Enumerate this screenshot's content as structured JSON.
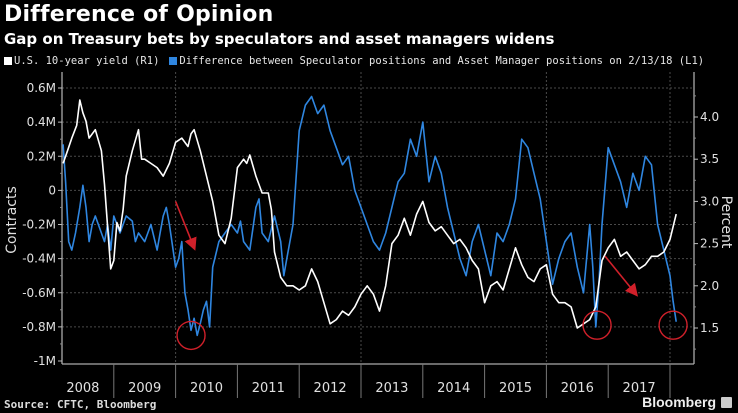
{
  "header": {
    "title": "Difference of Opinion",
    "subtitle": "Gap on Treasury bets by speculators and asset managers widens"
  },
  "footer": {
    "source": "Source: CFTC, Bloomberg",
    "brand": "Bloomberg"
  },
  "colors": {
    "background": "#000000",
    "yield_line": "#ffffff",
    "difference_line": "#2f86e0",
    "annotation": "#d0202a",
    "grid": "#555555"
  },
  "chart_data": {
    "type": "line",
    "title": "Difference of Opinion",
    "subtitle": "Gap on Treasury bets by speculators and asset managers widens",
    "legend_placement": "top-left",
    "legend": [
      "U.S. 10-year yield (R1)",
      "Difference between Speculator positions and Asset Manager positions on 2/13/18 (L1)"
    ],
    "xlabel": "",
    "x_tick_labels": [
      "2008",
      "2009",
      "2010",
      "2011",
      "2012",
      "2013",
      "2014",
      "2015",
      "2016",
      "2017"
    ],
    "xlim": [
      2008.0,
      2018.3
    ],
    "left_axis": {
      "label": "Contracts",
      "ticks": [
        0.6,
        0.4,
        0.2,
        0,
        -0.2,
        -0.4,
        -0.6,
        -0.8,
        -1.0
      ],
      "tick_labels": [
        "0.6M",
        "0.4M",
        "0.2M",
        "0",
        "-0.2M",
        "-0.4M",
        "-0.6M",
        "-0.8M",
        "-1M"
      ],
      "ylim": [
        -1.0,
        0.68
      ],
      "units": "millions of contracts"
    },
    "right_axis": {
      "label": "Percent",
      "ticks": [
        4.0,
        3.5,
        3.0,
        2.5,
        2.0,
        1.5
      ],
      "tick_labels": [
        "4.0",
        "3.5",
        "3.0",
        "2.5",
        "2.0",
        "1.5"
      ],
      "ylim": [
        1.25,
        4.45
      ]
    },
    "grid": true,
    "series": [
      {
        "name": "U.S. 10-year yield (R1)",
        "axis": "right",
        "color": "#ffffff",
        "x": [
          2008.18,
          2008.25,
          2008.32,
          2008.4,
          2008.45,
          2008.5,
          2008.55,
          2008.6,
          2008.7,
          2008.8,
          2008.85,
          2008.9,
          2008.95,
          2009.0,
          2009.05,
          2009.1,
          2009.15,
          2009.2,
          2009.3,
          2009.4,
          2009.45,
          2009.5,
          2009.6,
          2009.7,
          2009.8,
          2009.9,
          2010.0,
          2010.1,
          2010.2,
          2010.25,
          2010.3,
          2010.4,
          2010.5,
          2010.6,
          2010.7,
          2010.8,
          2010.9,
          2011.0,
          2011.1,
          2011.15,
          2011.2,
          2011.3,
          2011.4,
          2011.5,
          2011.55,
          2011.6,
          2011.7,
          2011.8,
          2011.9,
          2012.0,
          2012.1,
          2012.2,
          2012.3,
          2012.4,
          2012.5,
          2012.6,
          2012.7,
          2012.8,
          2012.9,
          2013.0,
          2013.1,
          2013.2,
          2013.3,
          2013.4,
          2013.5,
          2013.6,
          2013.7,
          2013.8,
          2013.9,
          2014.0,
          2014.1,
          2014.2,
          2014.3,
          2014.4,
          2014.5,
          2014.6,
          2014.7,
          2014.8,
          2014.9,
          2015.0,
          2015.1,
          2015.2,
          2015.3,
          2015.4,
          2015.5,
          2015.6,
          2015.7,
          2015.8,
          2015.9,
          2016.0,
          2016.1,
          2016.2,
          2016.3,
          2016.4,
          2016.5,
          2016.6,
          2016.7,
          2016.8,
          2016.9,
          2017.0,
          2017.1,
          2017.2,
          2017.3,
          2017.4,
          2017.5,
          2017.6,
          2017.7,
          2017.8,
          2017.9,
          2018.0,
          2018.1
        ],
        "values": [
          3.45,
          3.6,
          3.75,
          3.9,
          4.2,
          4.05,
          3.95,
          3.75,
          3.85,
          3.6,
          3.2,
          2.7,
          2.2,
          2.3,
          2.75,
          2.65,
          2.9,
          3.3,
          3.6,
          3.85,
          3.5,
          3.5,
          3.45,
          3.4,
          3.3,
          3.45,
          3.7,
          3.75,
          3.65,
          3.8,
          3.85,
          3.6,
          3.3,
          3.0,
          2.6,
          2.5,
          2.8,
          3.4,
          3.5,
          3.45,
          3.55,
          3.3,
          3.1,
          3.1,
          2.9,
          2.4,
          2.1,
          2.0,
          2.0,
          1.95,
          2.0,
          2.2,
          2.05,
          1.8,
          1.55,
          1.6,
          1.7,
          1.65,
          1.75,
          1.9,
          2.0,
          1.9,
          1.7,
          2.0,
          2.5,
          2.6,
          2.8,
          2.6,
          2.85,
          3.0,
          2.75,
          2.65,
          2.7,
          2.6,
          2.5,
          2.55,
          2.45,
          2.3,
          2.2,
          1.8,
          2.0,
          2.05,
          1.95,
          2.2,
          2.45,
          2.25,
          2.1,
          2.05,
          2.2,
          2.25,
          1.9,
          1.8,
          1.8,
          1.75,
          1.5,
          1.55,
          1.6,
          1.75,
          2.3,
          2.45,
          2.55,
          2.35,
          2.4,
          2.3,
          2.2,
          2.25,
          2.35,
          2.35,
          2.4,
          2.55,
          2.85
        ]
      },
      {
        "name": "Difference between Speculator positions and Asset Manager positions on 2/13/18 (L1)",
        "axis": "left",
        "color": "#2f86e0",
        "x": [
          2008.18,
          2008.22,
          2008.27,
          2008.32,
          2008.38,
          2008.45,
          2008.5,
          2008.55,
          2008.6,
          2008.65,
          2008.7,
          2008.8,
          2008.85,
          2008.9,
          2008.95,
          2009.0,
          2009.05,
          2009.1,
          2009.2,
          2009.3,
          2009.35,
          2009.4,
          2009.5,
          2009.6,
          2009.7,
          2009.75,
          2009.8,
          2009.85,
          2009.9,
          2010.0,
          2010.05,
          2010.1,
          2010.15,
          2010.2,
          2010.25,
          2010.3,
          2010.35,
          2010.4,
          2010.45,
          2010.5,
          2010.55,
          2010.6,
          2010.7,
          2010.8,
          2010.9,
          2011.0,
          2011.05,
          2011.1,
          2011.2,
          2011.3,
          2011.35,
          2011.4,
          2011.5,
          2011.6,
          2011.7,
          2011.75,
          2011.8,
          2011.9,
          2012.0,
          2012.1,
          2012.2,
          2012.3,
          2012.4,
          2012.5,
          2012.6,
          2012.7,
          2012.8,
          2012.9,
          2013.0,
          2013.1,
          2013.2,
          2013.3,
          2013.4,
          2013.5,
          2013.6,
          2013.7,
          2013.8,
          2013.9,
          2014.0,
          2014.1,
          2014.2,
          2014.3,
          2014.4,
          2014.5,
          2014.6,
          2014.7,
          2014.8,
          2014.9,
          2015.0,
          2015.1,
          2015.2,
          2015.3,
          2015.4,
          2015.5,
          2015.6,
          2015.7,
          2015.8,
          2015.9,
          2016.0,
          2016.1,
          2016.2,
          2016.3,
          2016.4,
          2016.5,
          2016.6,
          2016.7,
          2016.75,
          2016.8,
          2016.85,
          2016.9,
          2017.0,
          2017.1,
          2017.2,
          2017.3,
          2017.4,
          2017.5,
          2017.6,
          2017.7,
          2017.8,
          2017.9,
          2018.0,
          2018.05,
          2018.1
        ],
        "values": [
          0.27,
          0.05,
          -0.3,
          -0.35,
          -0.25,
          -0.1,
          0.03,
          -0.1,
          -0.3,
          -0.2,
          -0.15,
          -0.25,
          -0.3,
          -0.2,
          -0.35,
          -0.15,
          -0.2,
          -0.25,
          -0.15,
          -0.18,
          -0.3,
          -0.25,
          -0.3,
          -0.2,
          -0.35,
          -0.25,
          -0.15,
          -0.1,
          -0.2,
          -0.45,
          -0.4,
          -0.3,
          -0.6,
          -0.7,
          -0.82,
          -0.75,
          -0.85,
          -0.78,
          -0.7,
          -0.65,
          -0.8,
          -0.45,
          -0.3,
          -0.25,
          -0.2,
          -0.25,
          -0.18,
          -0.3,
          -0.35,
          -0.1,
          -0.05,
          -0.25,
          -0.3,
          -0.15,
          -0.3,
          -0.5,
          -0.4,
          -0.2,
          0.35,
          0.5,
          0.55,
          0.45,
          0.5,
          0.35,
          0.25,
          0.15,
          0.2,
          0.0,
          -0.1,
          -0.2,
          -0.3,
          -0.35,
          -0.25,
          -0.1,
          0.05,
          0.1,
          0.3,
          0.2,
          0.4,
          0.05,
          0.2,
          0.1,
          -0.1,
          -0.25,
          -0.4,
          -0.5,
          -0.3,
          -0.2,
          -0.35,
          -0.5,
          -0.25,
          -0.3,
          -0.2,
          -0.05,
          0.3,
          0.25,
          0.1,
          -0.05,
          -0.3,
          -0.55,
          -0.4,
          -0.3,
          -0.25,
          -0.45,
          -0.6,
          -0.2,
          -0.45,
          -0.8,
          -0.55,
          -0.2,
          0.25,
          0.15,
          0.05,
          -0.1,
          0.1,
          0.0,
          0.2,
          0.15,
          -0.2,
          -0.35,
          -0.5,
          -0.65,
          -0.77
        ]
      }
    ],
    "annotations": [
      {
        "type": "arrow",
        "color": "#d0202a",
        "from": {
          "x": 2010.0,
          "y_right": 3.0
        },
        "to": {
          "x": 2010.3,
          "y_right": 2.45
        }
      },
      {
        "type": "circle",
        "color": "#d0202a",
        "center": {
          "x": 2010.25,
          "y_left": -0.85
        }
      },
      {
        "type": "arrow",
        "color": "#d0202a",
        "from": {
          "x": 2016.95,
          "y_right": 2.35
        },
        "to": {
          "x": 2017.45,
          "y_right": 1.9
        }
      },
      {
        "type": "circle",
        "color": "#d0202a",
        "center": {
          "x": 2016.82,
          "y_left": -0.79
        }
      },
      {
        "type": "circle",
        "color": "#d0202a",
        "center": {
          "x": 2018.05,
          "y_left": -0.79
        }
      }
    ]
  }
}
